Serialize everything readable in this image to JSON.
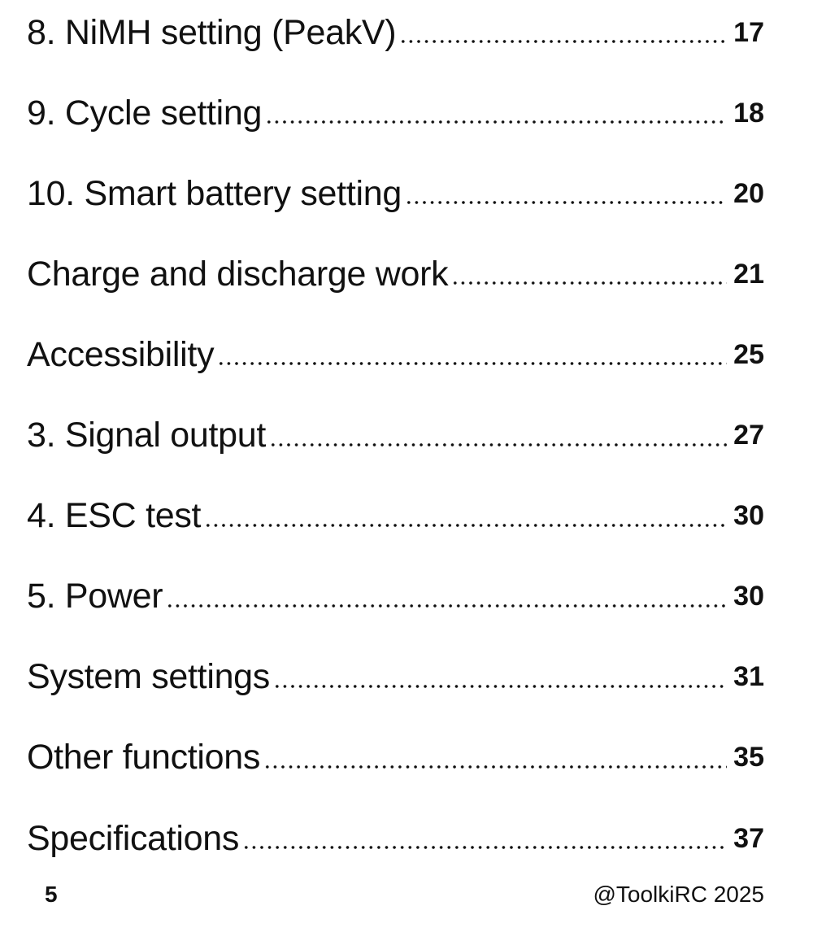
{
  "toc": {
    "entries": [
      {
        "title": "8. NiMH setting (PeakV)",
        "page": "17"
      },
      {
        "title": "9. Cycle setting",
        "page": "18"
      },
      {
        "title": "10. Smart battery setting",
        "page": "20"
      },
      {
        "title": "Charge and discharge work",
        "page": "21"
      },
      {
        "title": "Accessibility",
        "page": "25"
      },
      {
        "title": "3. Signal output",
        "page": "27"
      },
      {
        "title": "4. ESC test",
        "page": "30"
      },
      {
        "title": "5. Power",
        "page": "30"
      },
      {
        "title": "System settings",
        "page": "31"
      },
      {
        "title": "Other functions",
        "page": "35"
      },
      {
        "title": "Specifications",
        "page": "37"
      }
    ]
  },
  "footer": {
    "page_number": "5",
    "copyright": "@ToolkiRC 2025"
  }
}
